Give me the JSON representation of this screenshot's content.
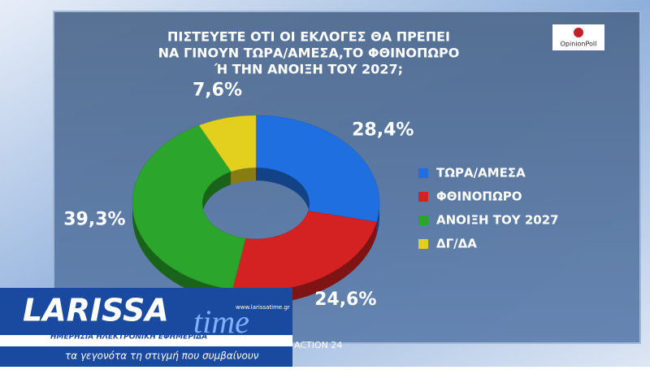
{
  "chart_data": {
    "type": "pie",
    "title": [
      "ΠΙΣΤΕΥΕΤΕ ΟΤΙ ΟΙ ΕΚΛΟΓΕΣ ΘΑ ΠΡΕΠΕΙ",
      "ΝΑ ΓΙΝΟΥΝ ΤΩΡΑ/ΑΜΕΣΑ,ΤΟ ΦΘΙΝΟΠΩΡΟ",
      "Ή ΤΗΝ ΑΝΟΙΞΗ ΤΟΥ 2027;"
    ],
    "categories": [
      "ΤΩΡΑ/ΑΜΕΣΑ",
      "ΦΘΙΝΟΠΩΡΟ",
      "ΑΝΟΙΞΗ ΤΟΥ 2027",
      "ΔΓ/ΔΑ"
    ],
    "values": [
      28.4,
      24.6,
      39.3,
      7.6
    ],
    "value_labels": [
      "28,4%",
      "24,6%",
      "39,3%",
      "7,6%"
    ],
    "colors": [
      "#1f6fe0",
      "#d42222",
      "#2ca52c",
      "#e3d01e"
    ],
    "donut": true,
    "legend": "right"
  },
  "source": "OpinionPoll",
  "logo": {
    "name": "LARISSA",
    "name2": "time",
    "url": "www.larissatime.gr",
    "subtitle": "ΗΜΕΡΗΣΙΑ ΗΛΕΚΤΡΟΝΙΚΗ ΕΦΗΜΕΡΙΔΑ",
    "slogan": "τα γεγονότα τη στιγμή που συμβαίνουν"
  },
  "channel": "ACTION 24"
}
